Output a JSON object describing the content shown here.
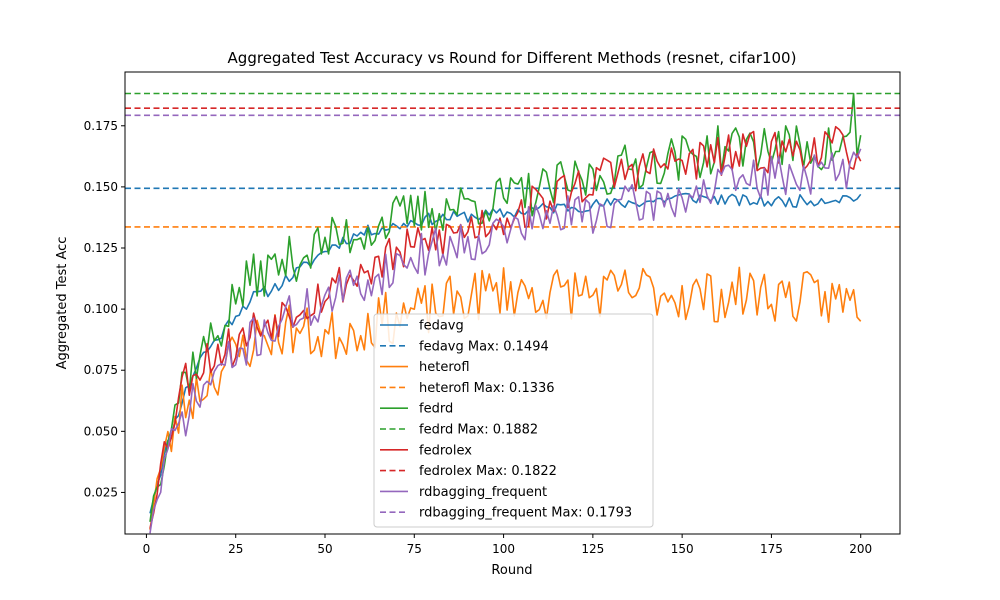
{
  "chart_data": {
    "type": "line",
    "title": "Aggregated Test Accuracy vs Round for Different Methods (resnet, cifar100)",
    "xlabel": "Round",
    "ylabel": "Aggregated Test Acc",
    "xlim": [
      -6,
      211
    ],
    "ylim": [
      0.008,
      0.197
    ],
    "xticks": [
      0,
      25,
      50,
      75,
      100,
      125,
      150,
      175,
      200
    ],
    "yticks": [
      0.025,
      0.05,
      0.075,
      0.1,
      0.125,
      0.15,
      0.175
    ],
    "ytick_labels": [
      "0.025",
      "0.050",
      "0.075",
      "0.100",
      "0.125",
      "0.150",
      "0.175"
    ],
    "grid": false,
    "legend_position": "lower-center",
    "series": [
      {
        "name": "fedavg",
        "color": "#1f77b4",
        "style": "solid",
        "anchors": [
          [
            1,
            0.017
          ],
          [
            5,
            0.04
          ],
          [
            10,
            0.063
          ],
          [
            15,
            0.08
          ],
          [
            20,
            0.088
          ],
          [
            25,
            0.098
          ],
          [
            30,
            0.105
          ],
          [
            35,
            0.108
          ],
          [
            40,
            0.113
          ],
          [
            45,
            0.118
          ],
          [
            50,
            0.124
          ],
          [
            55,
            0.128
          ],
          [
            60,
            0.131
          ],
          [
            65,
            0.133
          ],
          [
            70,
            0.134
          ],
          [
            75,
            0.136
          ],
          [
            80,
            0.137
          ],
          [
            90,
            0.138
          ],
          [
            100,
            0.139
          ],
          [
            110,
            0.141
          ],
          [
            120,
            0.142
          ],
          [
            130,
            0.143
          ],
          [
            140,
            0.144
          ],
          [
            150,
            0.146
          ],
          [
            160,
            0.145
          ],
          [
            170,
            0.144
          ],
          [
            180,
            0.144
          ],
          [
            190,
            0.145
          ],
          [
            200,
            0.146
          ]
        ],
        "noise": 0.0025,
        "seed": 11
      },
      {
        "name": "fedavg Max: 0.1494",
        "color": "#1f77b4",
        "style": "dashed",
        "value": 0.1494
      },
      {
        "name": "heterofl",
        "color": "#ff7f0e",
        "style": "solid",
        "anchors": [
          [
            1,
            0.012
          ],
          [
            3,
            0.03
          ],
          [
            10,
            0.06
          ],
          [
            20,
            0.075
          ],
          [
            30,
            0.087
          ],
          [
            40,
            0.092
          ],
          [
            50,
            0.088
          ],
          [
            60,
            0.093
          ],
          [
            70,
            0.097
          ],
          [
            80,
            0.1
          ],
          [
            90,
            0.105
          ],
          [
            100,
            0.108
          ],
          [
            110,
            0.106
          ],
          [
            120,
            0.107
          ],
          [
            130,
            0.106
          ],
          [
            140,
            0.108
          ],
          [
            150,
            0.106
          ],
          [
            160,
            0.105
          ],
          [
            170,
            0.107
          ],
          [
            180,
            0.105
          ],
          [
            190,
            0.104
          ],
          [
            200,
            0.103
          ]
        ],
        "noise": 0.011,
        "seed": 23
      },
      {
        "name": "heterofl Max: 0.1336",
        "color": "#ff7f0e",
        "style": "dashed",
        "value": 0.1336
      },
      {
        "name": "fedrd",
        "color": "#2ca02c",
        "style": "solid",
        "anchors": [
          [
            1,
            0.015
          ],
          [
            5,
            0.045
          ],
          [
            10,
            0.07
          ],
          [
            15,
            0.082
          ],
          [
            20,
            0.09
          ],
          [
            25,
            0.105
          ],
          [
            30,
            0.113
          ],
          [
            40,
            0.12
          ],
          [
            50,
            0.127
          ],
          [
            60,
            0.132
          ],
          [
            70,
            0.137
          ],
          [
            80,
            0.14
          ],
          [
            90,
            0.143
          ],
          [
            100,
            0.145
          ],
          [
            110,
            0.148
          ],
          [
            120,
            0.152
          ],
          [
            130,
            0.156
          ],
          [
            140,
            0.16
          ],
          [
            150,
            0.162
          ],
          [
            160,
            0.165
          ],
          [
            170,
            0.167
          ],
          [
            180,
            0.166
          ],
          [
            190,
            0.165
          ],
          [
            197,
            0.168
          ],
          [
            200,
            0.168
          ]
        ],
        "noise": 0.01,
        "seed": 37,
        "peak": [
          198,
          0.1882
        ]
      },
      {
        "name": "fedrd Max: 0.1882",
        "color": "#2ca02c",
        "style": "dashed",
        "value": 0.1882
      },
      {
        "name": "fedrolex",
        "color": "#d62728",
        "style": "solid",
        "anchors": [
          [
            1,
            0.012
          ],
          [
            5,
            0.042
          ],
          [
            10,
            0.07
          ],
          [
            15,
            0.078
          ],
          [
            20,
            0.083
          ],
          [
            25,
            0.085
          ],
          [
            30,
            0.092
          ],
          [
            40,
            0.1
          ],
          [
            50,
            0.107
          ],
          [
            60,
            0.115
          ],
          [
            70,
            0.122
          ],
          [
            80,
            0.128
          ],
          [
            90,
            0.133
          ],
          [
            100,
            0.138
          ],
          [
            110,
            0.143
          ],
          [
            120,
            0.15
          ],
          [
            130,
            0.155
          ],
          [
            140,
            0.158
          ],
          [
            150,
            0.16
          ],
          [
            160,
            0.162
          ],
          [
            170,
            0.164
          ],
          [
            180,
            0.165
          ],
          [
            190,
            0.166
          ],
          [
            200,
            0.165
          ]
        ],
        "noise": 0.009,
        "seed": 53
      },
      {
        "name": "fedrolex Max: 0.1822",
        "color": "#d62728",
        "style": "dashed",
        "value": 0.1822
      },
      {
        "name": "rdbagging_frequent",
        "color": "#9467bd",
        "style": "solid",
        "anchors": [
          [
            1,
            0.01
          ],
          [
            5,
            0.035
          ],
          [
            10,
            0.055
          ],
          [
            15,
            0.065
          ],
          [
            20,
            0.075
          ],
          [
            25,
            0.08
          ],
          [
            30,
            0.088
          ],
          [
            40,
            0.097
          ],
          [
            50,
            0.103
          ],
          [
            60,
            0.11
          ],
          [
            70,
            0.118
          ],
          [
            80,
            0.124
          ],
          [
            90,
            0.128
          ],
          [
            100,
            0.132
          ],
          [
            110,
            0.136
          ],
          [
            120,
            0.139
          ],
          [
            130,
            0.141
          ],
          [
            140,
            0.143
          ],
          [
            150,
            0.146
          ],
          [
            160,
            0.15
          ],
          [
            170,
            0.153
          ],
          [
            180,
            0.155
          ],
          [
            190,
            0.156
          ],
          [
            200,
            0.158
          ]
        ],
        "noise": 0.009,
        "seed": 71
      },
      {
        "name": "rdbagging_frequent Max: 0.1793",
        "color": "#9467bd",
        "style": "dashed",
        "value": 0.1793
      }
    ]
  }
}
